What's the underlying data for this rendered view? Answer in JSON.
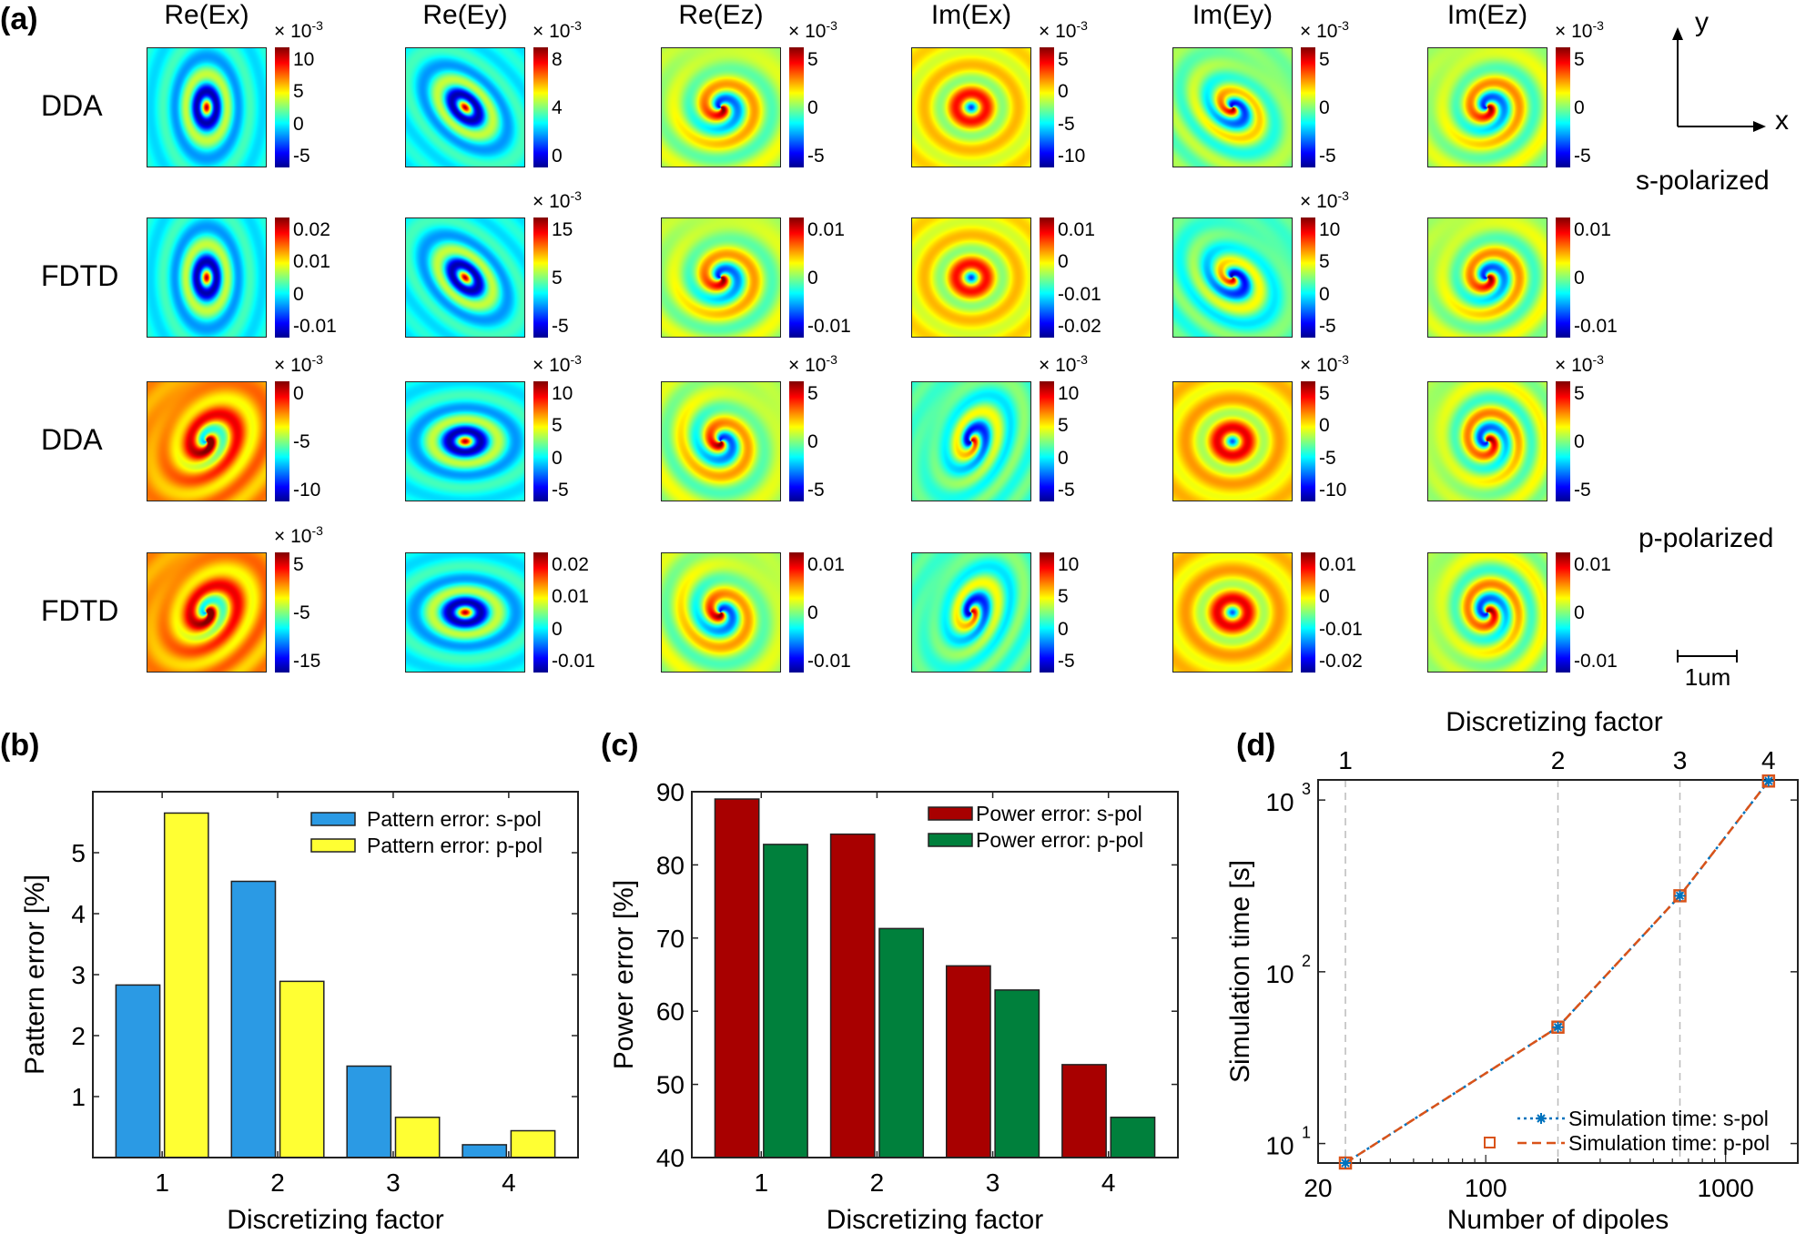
{
  "panel_labels": {
    "a": "(a)",
    "b": "(b)",
    "c": "(c)",
    "d": "(d)"
  },
  "heatmaps": {
    "column_titles": [
      "Re(Ex)",
      "Re(Ey)",
      "Re(Ez)",
      "Im(Ex)",
      "Im(Ey)",
      "Im(Ez)"
    ],
    "row_labels": [
      "DDA",
      "FDTD",
      "DDA",
      "FDTD"
    ],
    "polarization_labels": [
      "s-polarized",
      "p-polarized"
    ],
    "axes_labels": {
      "x": "x",
      "y": "y"
    },
    "scale_bar": "1um",
    "colormap": "jet",
    "panels": [
      [
        {
          "mult": "× 10",
          "exp": "-3",
          "ticks": [
            "10",
            "5",
            "0",
            "-5"
          ]
        },
        {
          "mult": "× 10",
          "exp": "-3",
          "ticks": [
            "8",
            "4",
            "0"
          ]
        },
        {
          "mult": "× 10",
          "exp": "-3",
          "ticks": [
            "5",
            "0",
            "-5"
          ]
        },
        {
          "mult": "× 10",
          "exp": "-3",
          "ticks": [
            "5",
            "0",
            "-5",
            "-10"
          ]
        },
        {
          "mult": "× 10",
          "exp": "-3",
          "ticks": [
            "5",
            "0",
            "-5"
          ]
        },
        {
          "mult": "× 10",
          "exp": "-3",
          "ticks": [
            "5",
            "0",
            "-5"
          ]
        }
      ],
      [
        {
          "ticks": [
            "0.02",
            "0.01",
            "0",
            "-0.01"
          ]
        },
        {
          "mult": "× 10",
          "exp": "-3",
          "ticks": [
            "15",
            "5",
            "-5"
          ]
        },
        {
          "ticks": [
            "0.01",
            "0",
            "-0.01"
          ]
        },
        {
          "ticks": [
            "0.01",
            "0",
            "-0.01",
            "-0.02"
          ]
        },
        {
          "mult": "× 10",
          "exp": "-3",
          "ticks": [
            "10",
            "5",
            "0",
            "-5"
          ]
        },
        {
          "ticks": [
            "0.01",
            "0",
            "-0.01"
          ]
        }
      ],
      [
        {
          "mult": "× 10",
          "exp": "-3",
          "ticks": [
            "0",
            "-5",
            "-10"
          ]
        },
        {
          "mult": "× 10",
          "exp": "-3",
          "ticks": [
            "10",
            "5",
            "0",
            "-5"
          ]
        },
        {
          "mult": "× 10",
          "exp": "-3",
          "ticks": [
            "5",
            "0",
            "-5"
          ]
        },
        {
          "mult": "× 10",
          "exp": "-3",
          "ticks": [
            "10",
            "5",
            "0",
            "-5"
          ]
        },
        {
          "mult": "× 10",
          "exp": "-3",
          "ticks": [
            "5",
            "0",
            "-5",
            "-10"
          ]
        },
        {
          "mult": "× 10",
          "exp": "-3",
          "ticks": [
            "5",
            "0",
            "-5"
          ]
        }
      ],
      [
        {
          "mult": "× 10",
          "exp": "-3",
          "ticks": [
            "5",
            "-5",
            "-15"
          ]
        },
        {
          "ticks": [
            "0.02",
            "0.01",
            "0",
            "-0.01"
          ]
        },
        {
          "ticks": [
            "0.01",
            "0",
            "-0.01"
          ]
        },
        {
          "ticks": [
            "10",
            "5",
            "0",
            "-5"
          ]
        },
        {
          "ticks": [
            "0.01",
            "0",
            "-0.01",
            "-0.02"
          ]
        },
        {
          "ticks": [
            "0.01",
            "0",
            "-0.01"
          ]
        }
      ]
    ]
  },
  "chart_data": [
    {
      "id": "b",
      "type": "bar",
      "categories": [
        "1",
        "2",
        "3",
        "4"
      ],
      "xlabel": "Discretizing factor",
      "ylabel": "Pattern error [%]",
      "ylim": [
        0,
        6
      ],
      "yticks": [
        "1",
        "2",
        "3",
        "4",
        "5"
      ],
      "legend_position": "top-right",
      "series": [
        {
          "name": "Pattern error: s-pol",
          "color": "#2b9ae4",
          "values": [
            2.83,
            4.53,
            1.5,
            0.21
          ]
        },
        {
          "name": "Pattern error: p-pol",
          "color": "#ffff33",
          "values": [
            5.65,
            2.89,
            0.66,
            0.44
          ]
        }
      ]
    },
    {
      "id": "c",
      "type": "bar",
      "categories": [
        "1",
        "2",
        "3",
        "4"
      ],
      "xlabel": "Discretizing factor",
      "ylabel": "Power error [%]",
      "ylim": [
        40,
        90
      ],
      "yticks": [
        "40",
        "50",
        "60",
        "70",
        "80",
        "90"
      ],
      "legend_position": "top-right",
      "series": [
        {
          "name": "Power error: s-pol",
          "color": "#a80000",
          "values": [
            89.0,
            84.2,
            66.2,
            52.7
          ]
        },
        {
          "name": "Power error: p-pol",
          "color": "#00803c",
          "values": [
            82.8,
            71.3,
            62.9,
            45.5
          ]
        }
      ]
    },
    {
      "id": "d",
      "type": "line",
      "xscale": "log",
      "yscale": "log",
      "xlabel": "Number of dipoles",
      "ylabel": "Simulation time [s]",
      "x2label": "Discretizing factor",
      "x2ticks": [
        "1",
        "2",
        "3",
        "4"
      ],
      "xlim": [
        20,
        2000
      ],
      "ylim": [
        7.7,
        1310
      ],
      "xticks": [
        "20",
        "100",
        "1000"
      ],
      "yticks": [
        {
          "base": "10",
          "exp": "1"
        },
        {
          "base": "10",
          "exp": "2"
        },
        {
          "base": "10",
          "exp": "3"
        }
      ],
      "grid": "dashed vertical at discretizing factors",
      "legend_position": "bottom-right",
      "x": [
        26,
        200,
        645,
        1510
      ],
      "series": [
        {
          "name": "Simulation time: s-pol",
          "color": "#0072bd",
          "line": "dotted",
          "marker": "asterisk",
          "values": [
            7.7,
            47.6,
            277,
            1290
          ]
        },
        {
          "name": "Simulation time: p-pol",
          "color": "#d95319",
          "line": "dashed",
          "marker": "square",
          "values": [
            7.7,
            47.6,
            277,
            1290
          ]
        }
      ]
    }
  ]
}
